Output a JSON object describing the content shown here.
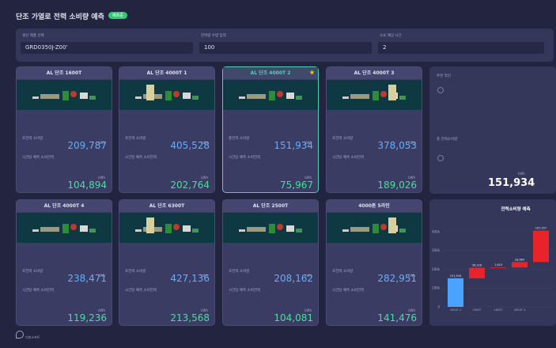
{
  "header": {
    "title": "단조 가열로 전력 소비량 예측",
    "badge": "예측중"
  },
  "inputs": [
    {
      "label": "생산 제품 선택",
      "value": "GRD0350J-Z00'"
    },
    {
      "label": "전력량 수량 입력",
      "value": "100"
    },
    {
      "label": "소요 예상 시간",
      "value": "2"
    }
  ],
  "cards": [
    {
      "title": "AL 단조 1600T",
      "total_label": "조전력 소비량",
      "total_unit": "kWh",
      "total_value": "209,787",
      "hourly_label": "시간당 예측 소비전력",
      "hourly_unit": "kWh",
      "hourly_value": "104,894"
    },
    {
      "title": "AL 단조 4000T 1",
      "total_label": "조전력 소비량",
      "total_unit": "kWh",
      "total_value": "405,528",
      "hourly_label": "시간당 예측 소비전력",
      "hourly_unit": "kWh",
      "hourly_value": "202,764"
    },
    {
      "title": "AL 단조 4000T 2",
      "total_label": "총전력 소비량",
      "total_unit": "kWh",
      "total_value": "151,934",
      "hourly_label": "시간당 예측 소비전력",
      "hourly_unit": "kWh",
      "hourly_value": "75,967"
    },
    {
      "title": "AL 단조 4000T 3",
      "total_label": "조전력 소비량",
      "total_unit": "kWh",
      "total_value": "378,053",
      "hourly_label": "시간당 예측 소비전력",
      "hourly_unit": "kWh",
      "hourly_value": "189,026"
    },
    {
      "title": "AL 단조 4000T 4",
      "total_label": "조전력 소비량",
      "total_unit": "kWh",
      "total_value": "238,471",
      "hourly_label": "시간당 예측 소비전력",
      "hourly_unit": "kWh",
      "hourly_value": "119,236"
    },
    {
      "title": "AL 단조 6300T",
      "total_label": "조전력 소비량",
      "total_unit": "kWh",
      "total_value": "427,136",
      "hourly_label": "시간당 예측 소비전력",
      "hourly_unit": "kWh",
      "hourly_value": "213,568"
    },
    {
      "title": "AL 단조 2500T",
      "total_label": "조전력 소비량",
      "total_unit": "kWh",
      "total_value": "208,162",
      "hourly_label": "시간당 예측 소비전력",
      "hourly_unit": "kWh",
      "hourly_value": "104,081"
    },
    {
      "title": "4000톤 5라인",
      "total_label": "조전력 소비량",
      "total_unit": "kWh",
      "total_value": "282,951",
      "hourly_label": "시간당 예측 소비전력",
      "hourly_unit": "kWh",
      "hourly_value": "141,476"
    }
  ],
  "selected_card": 2,
  "summary": {
    "recommend_label": "추천 라인",
    "total_label": "총 전력소비량",
    "total_unit": "kWh",
    "total_value": "151,934"
  },
  "chart_data": {
    "type": "waterfall",
    "title": "전력소비량 예측",
    "categories": [
      "4000T 2",
      "2500T",
      "1600T",
      "4000T 4",
      null
    ],
    "values": [
      151934,
      56228,
      1625,
      28684,
      167057
    ],
    "value_labels": [
      "151,934",
      "56,228",
      "1,625",
      "28,684",
      "167,057"
    ],
    "colors": [
      "#4aa3ff",
      "#e8232a",
      "#e8232a",
      "#e8232a",
      "#e8232a"
    ],
    "ylim": [
      0,
      450000
    ],
    "yticks": [
      0,
      {
        "value": 100000,
        "label": "100k"
      },
      {
        "value": 200000,
        "label": "200k"
      },
      {
        "value": 300000,
        "label": "300k"
      },
      {
        "value": 400000,
        "label": "400k"
      }
    ]
  },
  "footer": {
    "logo": "디피소프트"
  }
}
